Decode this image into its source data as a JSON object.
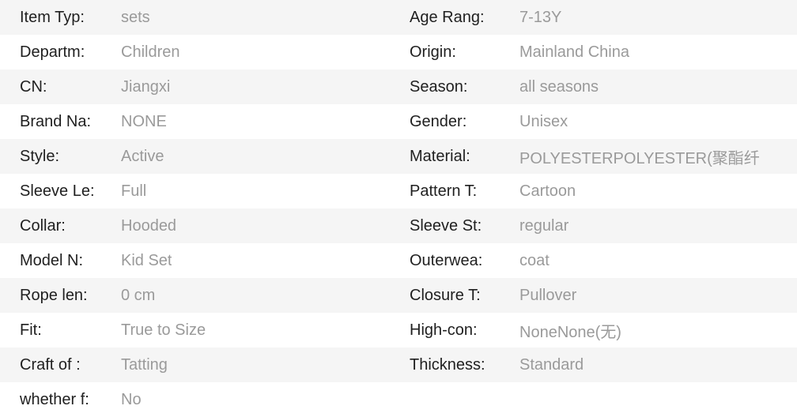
{
  "colors": {
    "row_stripe": "#f5f5f5",
    "row_plain": "#ffffff",
    "label_text": "#1f1f1f",
    "value_text": "#9a9a9a"
  },
  "spec_table": {
    "rows": [
      {
        "left": {
          "label": "Item Typ:",
          "value": "sets"
        },
        "right": {
          "label": "Age Rang:",
          "value": "7-13Y"
        }
      },
      {
        "left": {
          "label": "Departm:",
          "value": "Children"
        },
        "right": {
          "label": "Origin:",
          "value": "Mainland China"
        }
      },
      {
        "left": {
          "label": "CN:",
          "value": "Jiangxi"
        },
        "right": {
          "label": "Season:",
          "value": "all seasons"
        }
      },
      {
        "left": {
          "label": "Brand Na:",
          "value": "NONE"
        },
        "right": {
          "label": "Gender:",
          "value": "Unisex"
        }
      },
      {
        "left": {
          "label": "Style:",
          "value": "Active"
        },
        "right": {
          "label": "Material:",
          "value": "POLYESTERPOLYESTER(聚酯纤"
        }
      },
      {
        "left": {
          "label": "Sleeve Le:",
          "value": "Full"
        },
        "right": {
          "label": "Pattern T:",
          "value": "Cartoon"
        }
      },
      {
        "left": {
          "label": "Collar:",
          "value": "Hooded"
        },
        "right": {
          "label": "Sleeve St:",
          "value": "regular"
        }
      },
      {
        "left": {
          "label": "Model N:",
          "value": "Kid Set"
        },
        "right": {
          "label": "Outerwea:",
          "value": "coat"
        }
      },
      {
        "left": {
          "label": "Rope len:",
          "value": "0 cm"
        },
        "right": {
          "label": "Closure T:",
          "value": "Pullover"
        }
      },
      {
        "left": {
          "label": "Fit:",
          "value": "True to Size"
        },
        "right": {
          "label": "High-con:",
          "value": "NoneNone(无)"
        }
      },
      {
        "left": {
          "label": "Craft of :",
          "value": "Tatting"
        },
        "right": {
          "label": "Thickness:",
          "value": "Standard"
        }
      },
      {
        "left": {
          "label": "whether f:",
          "value": "No"
        },
        "right": null
      }
    ]
  }
}
